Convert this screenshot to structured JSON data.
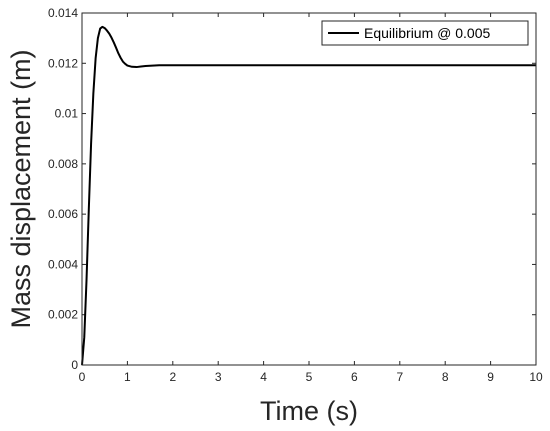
{
  "chart_data": {
    "type": "line",
    "title": "",
    "xlabel": "Time (s)",
    "ylabel": "Mass displacement (m)",
    "xlim": [
      0,
      10
    ],
    "ylim": [
      0,
      0.014
    ],
    "xticks": [
      "0",
      "1",
      "2",
      "3",
      "4",
      "5",
      "6",
      "7",
      "8",
      "9",
      "10"
    ],
    "yticks": [
      "0",
      "0.002",
      "0.004",
      "0.006",
      "0.008",
      "0.01",
      "0.012",
      "0.014"
    ],
    "grid": false,
    "legend_position": "top-right",
    "series": [
      {
        "name": "Equilibrium @ 0.005",
        "color": "#000000",
        "x": [
          0,
          0.05,
          0.1,
          0.15,
          0.2,
          0.25,
          0.3,
          0.35,
          0.4,
          0.45,
          0.5,
          0.55,
          0.6,
          0.65,
          0.7,
          0.75,
          0.8,
          0.85,
          0.9,
          0.95,
          1.0,
          1.1,
          1.2,
          1.3,
          1.4,
          1.5,
          1.7,
          2.0,
          2.5,
          3,
          4,
          5,
          6,
          7,
          8,
          9,
          10
        ],
        "y": [
          0,
          0.0011,
          0.0034,
          0.0062,
          0.0088,
          0.0108,
          0.0122,
          0.013,
          0.01338,
          0.01345,
          0.0134,
          0.0133,
          0.01318,
          0.01302,
          0.01283,
          0.01262,
          0.0124,
          0.01222,
          0.01207,
          0.01198,
          0.01191,
          0.01186,
          0.01185,
          0.01187,
          0.01189,
          0.0119,
          0.01192,
          0.01192,
          0.01192,
          0.01192,
          0.01192,
          0.01192,
          0.01192,
          0.01192,
          0.01192,
          0.01192,
          0.01192
        ]
      }
    ]
  }
}
